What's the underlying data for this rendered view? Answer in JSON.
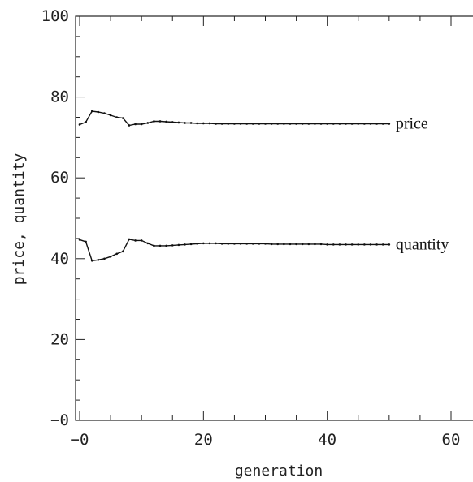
{
  "chart_data": {
    "type": "line",
    "title": "",
    "xlabel": "generation",
    "ylabel": "price, quantity",
    "xlim": [
      -1,
      62
    ],
    "ylim": [
      0,
      100
    ],
    "grid": false,
    "legend": "none",
    "x_ticks": [
      {
        "value": 0,
        "label": "−0"
      },
      {
        "value": 20,
        "label": "20"
      },
      {
        "value": 40,
        "label": "40"
      },
      {
        "value": 60,
        "label": "60"
      }
    ],
    "y_ticks": [
      {
        "value": 0,
        "label": "−0"
      },
      {
        "value": 20,
        "label": "20"
      },
      {
        "value": 40,
        "label": "40"
      },
      {
        "value": 60,
        "label": "60"
      },
      {
        "value": 80,
        "label": "80"
      },
      {
        "value": 100,
        "label": "100"
      }
    ],
    "series": [
      {
        "name": "price",
        "color": "#111111",
        "x": [
          0,
          1,
          2,
          3,
          4,
          5,
          6,
          7,
          8,
          9,
          10,
          11,
          12,
          13,
          14,
          15,
          16,
          17,
          18,
          19,
          20,
          21,
          22,
          23,
          24,
          25,
          26,
          27,
          28,
          29,
          30,
          31,
          32,
          33,
          34,
          35,
          36,
          37,
          38,
          39,
          40,
          41,
          42,
          43,
          44,
          45,
          46,
          47,
          48,
          49,
          50
        ],
        "values": [
          73.2,
          73.8,
          76.5,
          76.3,
          76.0,
          75.5,
          75.0,
          74.8,
          73.0,
          73.3,
          73.3,
          73.6,
          74.0,
          74.0,
          73.9,
          73.8,
          73.7,
          73.6,
          73.6,
          73.5,
          73.5,
          73.5,
          73.4,
          73.4,
          73.4,
          73.4,
          73.4,
          73.4,
          73.4,
          73.4,
          73.4,
          73.4,
          73.4,
          73.4,
          73.4,
          73.4,
          73.4,
          73.4,
          73.4,
          73.4,
          73.4,
          73.4,
          73.4,
          73.4,
          73.4,
          73.4,
          73.4,
          73.4,
          73.4,
          73.4,
          73.4
        ]
      },
      {
        "name": "quantity",
        "color": "#111111",
        "x": [
          0,
          1,
          2,
          3,
          4,
          5,
          6,
          7,
          8,
          9,
          10,
          11,
          12,
          13,
          14,
          15,
          16,
          17,
          18,
          19,
          20,
          21,
          22,
          23,
          24,
          25,
          26,
          27,
          28,
          29,
          30,
          31,
          32,
          33,
          34,
          35,
          36,
          37,
          38,
          39,
          40,
          41,
          42,
          43,
          44,
          45,
          46,
          47,
          48,
          49,
          50
        ],
        "values": [
          44.7,
          44.2,
          39.5,
          39.7,
          40.0,
          40.5,
          41.2,
          41.8,
          44.8,
          44.5,
          44.5,
          43.8,
          43.2,
          43.2,
          43.2,
          43.3,
          43.4,
          43.5,
          43.6,
          43.7,
          43.8,
          43.8,
          43.8,
          43.7,
          43.7,
          43.7,
          43.7,
          43.7,
          43.7,
          43.7,
          43.7,
          43.6,
          43.6,
          43.6,
          43.6,
          43.6,
          43.6,
          43.6,
          43.6,
          43.6,
          43.5,
          43.5,
          43.5,
          43.5,
          43.5,
          43.5,
          43.5,
          43.5,
          43.5,
          43.5,
          43.5
        ]
      }
    ]
  }
}
